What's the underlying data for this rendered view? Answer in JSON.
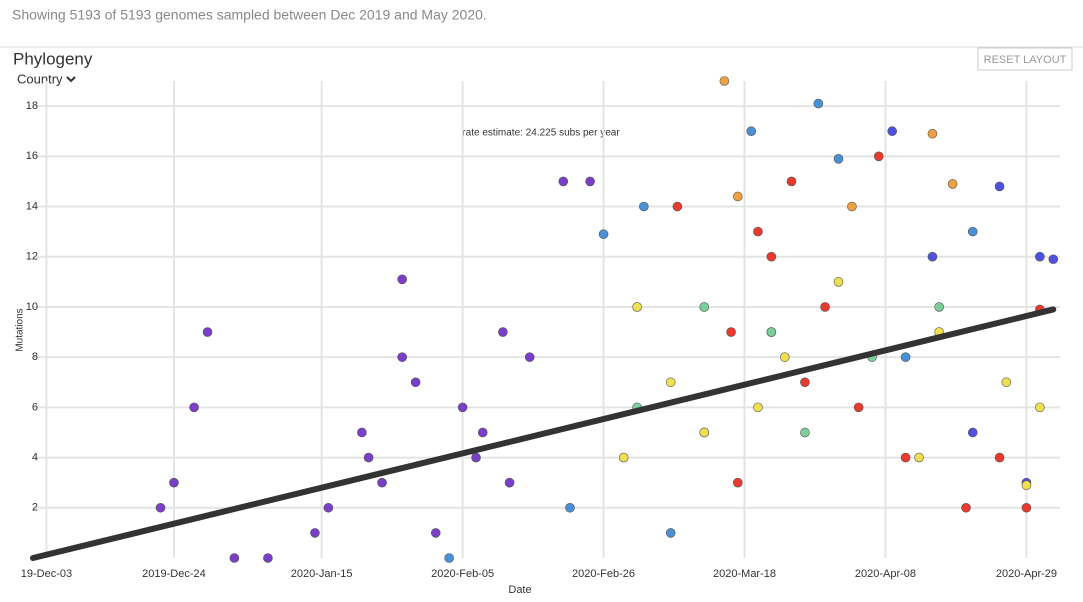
{
  "header": {
    "text": "Showing 5193 of 5193 genomes sampled between Dec 2019 and May 2020."
  },
  "panel": {
    "title": "Phylogeny",
    "dropdown": "Country",
    "button": "RESET LAYOUT"
  },
  "chart_data": {
    "type": "scatter",
    "annotation": "rate estimate: 24.225 subs per year",
    "x_label": "Date",
    "y_label": "Mutations",
    "xlim": [
      0,
      153
    ],
    "ylim": [
      0,
      19
    ],
    "xticks": [
      {
        "value": 2,
        "label": "19-Dec-03"
      },
      {
        "value": 21,
        "label": "2019-Dec-24"
      },
      {
        "value": 43,
        "label": "2020-Jan-15"
      },
      {
        "value": 64,
        "label": "2020-Feb-05"
      },
      {
        "value": 85,
        "label": "2020-Feb-26"
      },
      {
        "value": 106,
        "label": "2020-Mar-18"
      },
      {
        "value": 127,
        "label": "2020-Apr-08"
      },
      {
        "value": 148,
        "label": "2020-Apr-29"
      }
    ],
    "yticks": [
      2,
      4,
      6,
      8,
      10,
      12,
      14,
      16,
      18
    ],
    "grid": true,
    "regression": {
      "color": "#333333",
      "x": [
        0,
        152
      ],
      "y": [
        0,
        9.9
      ]
    },
    "series": [
      {
        "color": "#7a3fc8",
        "x": [
          26,
          24,
          21,
          19,
          44,
          49,
          50,
          52,
          55,
          57,
          64,
          67,
          71,
          74,
          79,
          83,
          55,
          35,
          30,
          42,
          60,
          66,
          70
        ],
        "values": [
          9,
          6,
          3,
          2,
          2,
          5,
          4,
          3,
          8,
          7,
          6,
          5,
          3,
          8,
          15,
          15,
          11.1,
          0,
          0,
          1,
          1,
          4,
          9
        ]
      },
      {
        "color": "#4a90d9",
        "x": [
          85,
          91,
          107,
          117,
          120,
          100,
          110,
          130,
          140,
          62,
          80,
          95
        ],
        "values": [
          12.9,
          14,
          17,
          18.1,
          15.9,
          5,
          9,
          8,
          13,
          0,
          2,
          1
        ]
      },
      {
        "color": "#5050e0",
        "x": [
          128,
          144,
          150,
          152,
          134,
          140,
          148
        ],
        "values": [
          17,
          14.8,
          12,
          11.9,
          12,
          5,
          3
        ]
      },
      {
        "color": "#e83a2e",
        "x": [
          104,
          108,
          113,
          126,
          118,
          123,
          130,
          139,
          148,
          144,
          105,
          110,
          96,
          115,
          150
        ],
        "values": [
          9,
          13,
          15,
          16,
          10,
          6,
          4,
          2,
          2,
          4,
          3,
          12,
          14,
          7,
          9.9
        ]
      },
      {
        "color": "#f0e050",
        "x": [
          90,
          95,
          100,
          112,
          120,
          135,
          145,
          150,
          148,
          132,
          108,
          88
        ],
        "values": [
          10,
          7,
          5,
          8,
          11,
          9,
          7,
          6,
          2.9,
          4,
          6,
          4
        ]
      },
      {
        "color": "#7ad09a",
        "x": [
          100,
          110,
          125,
          135,
          90,
          115
        ],
        "values": [
          10,
          9,
          8,
          10,
          6,
          5
        ]
      },
      {
        "color": "#f0a040",
        "x": [
          103,
          105,
          134,
          137,
          122
        ],
        "values": [
          19,
          14.4,
          16.9,
          14.9,
          14
        ]
      }
    ]
  }
}
